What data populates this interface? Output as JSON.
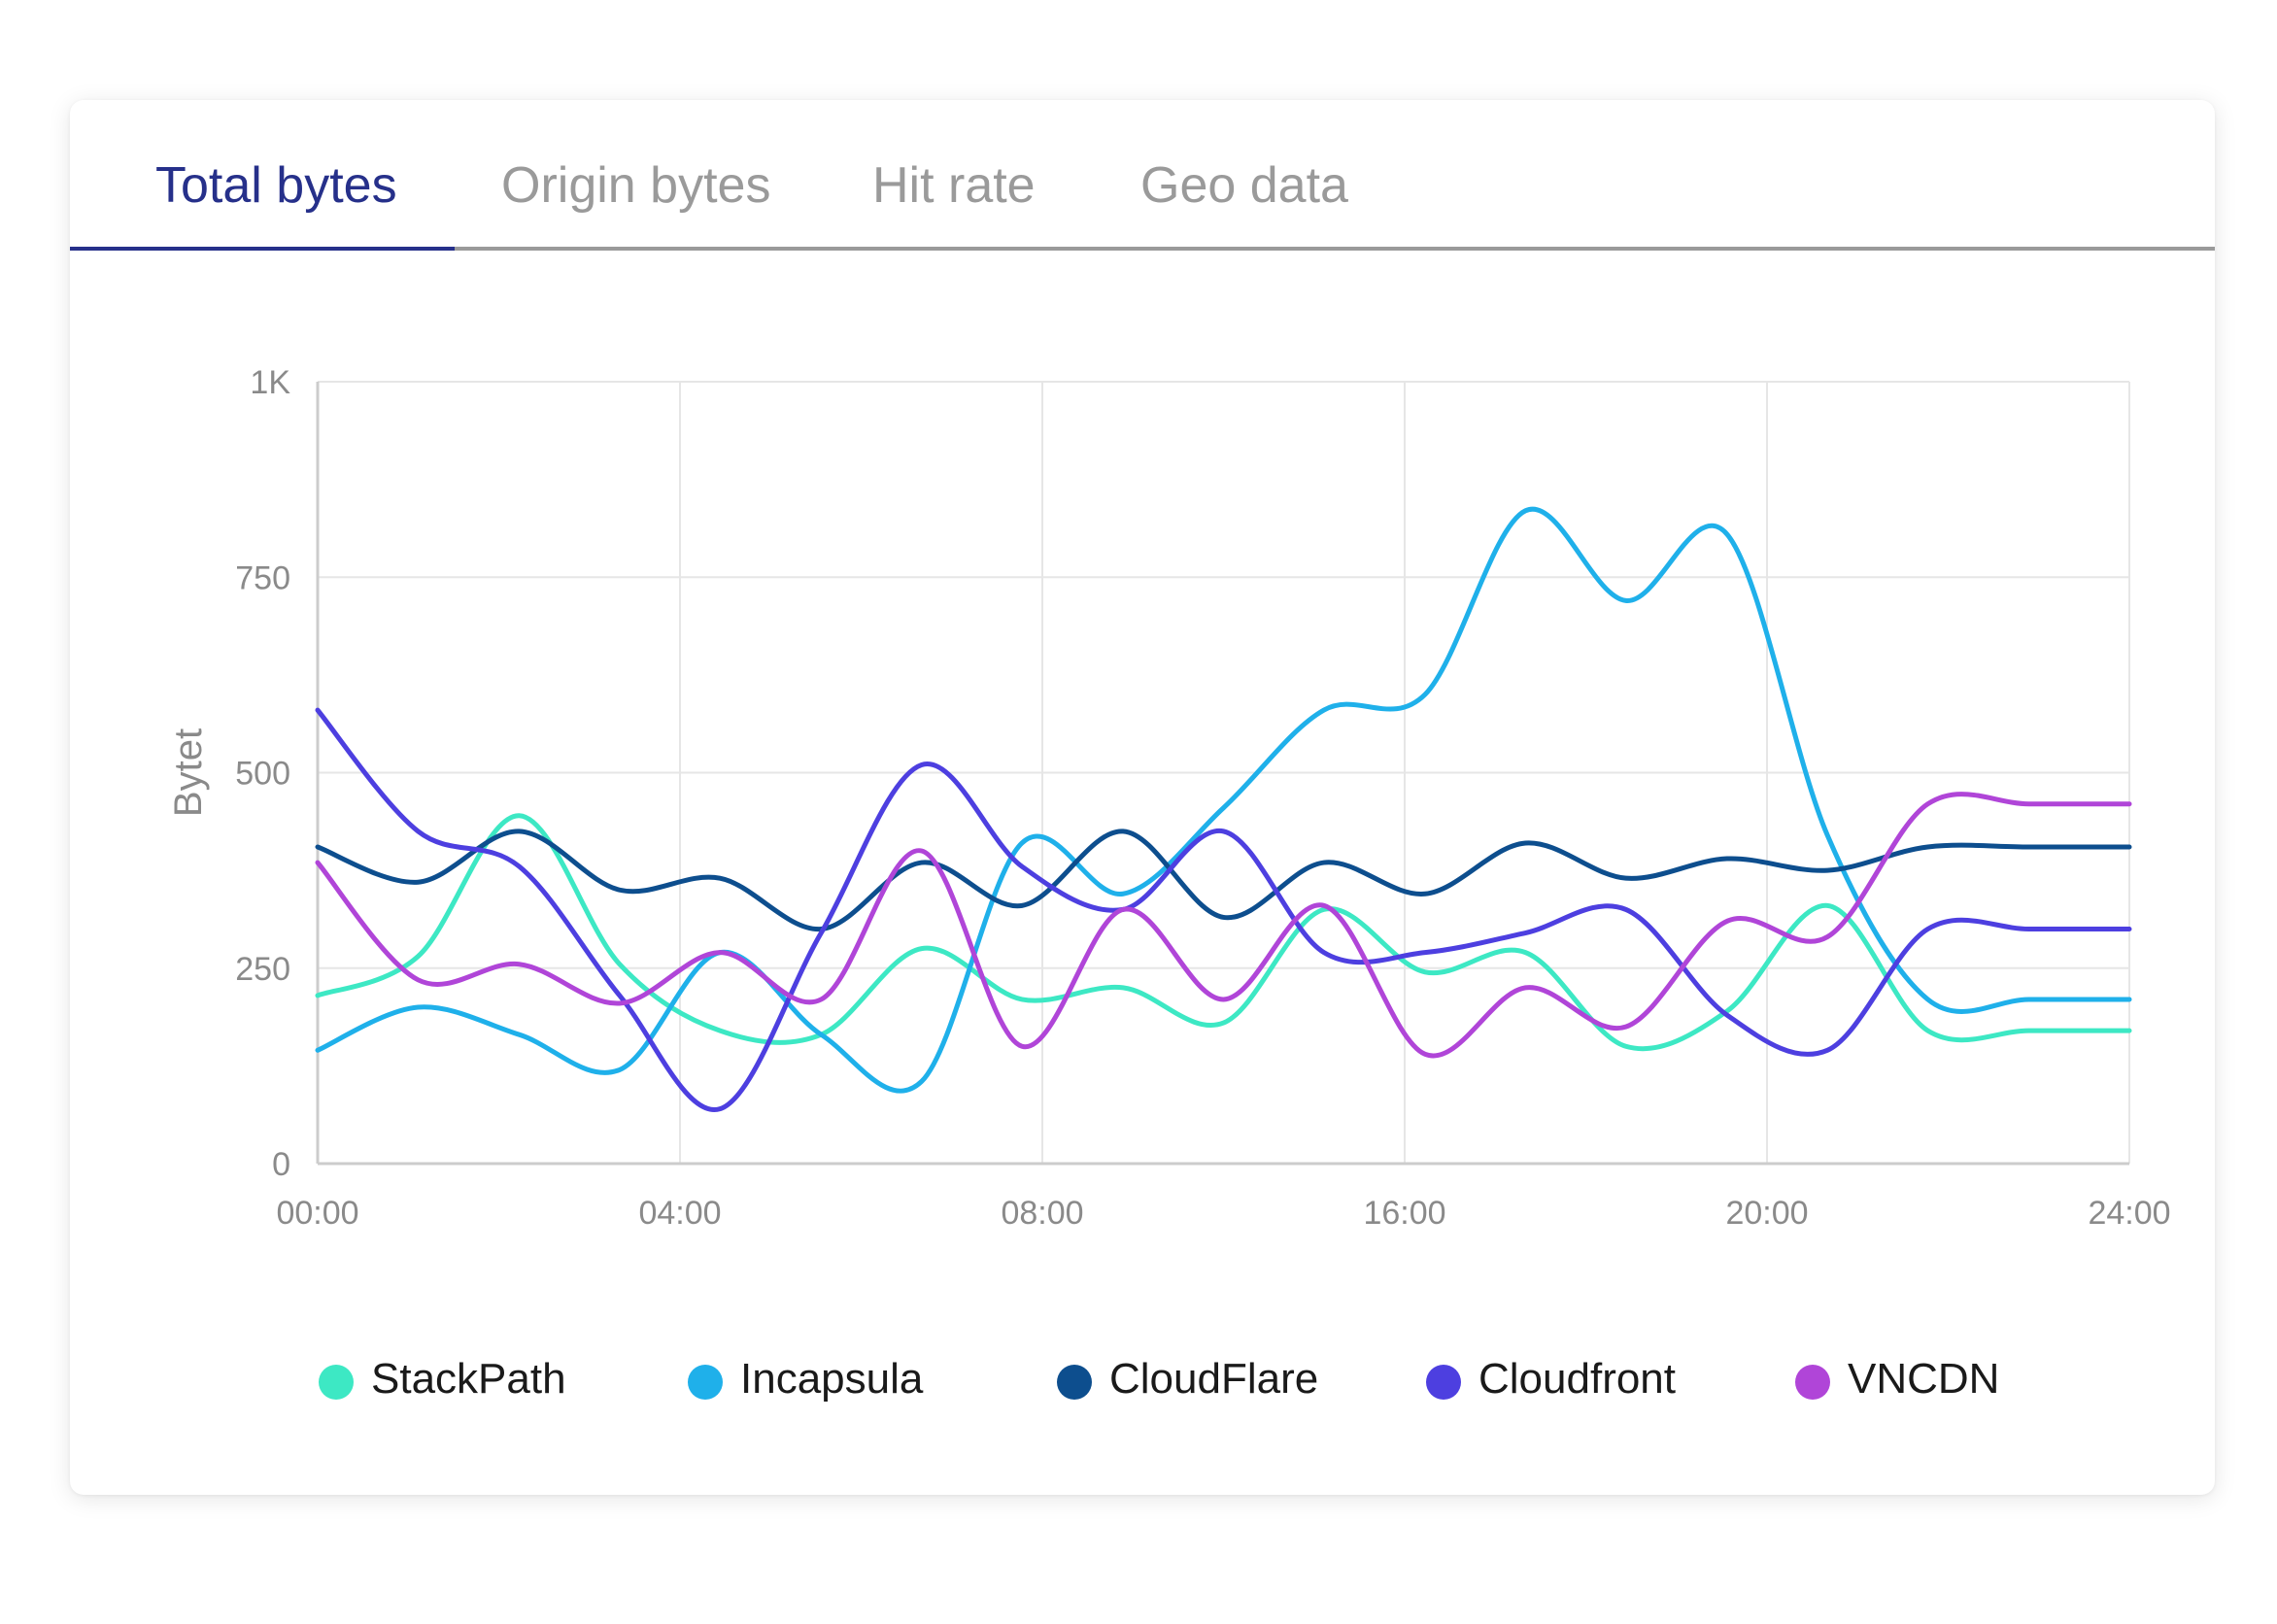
{
  "tabs": [
    {
      "label": "Total bytes",
      "active": true
    },
    {
      "label": "Origin bytes",
      "active": false
    },
    {
      "label": "Hit rate",
      "active": false
    },
    {
      "label": "Geo data",
      "active": false
    }
  ],
  "colors": {
    "accent": "#26308a",
    "grid": "#e6e6e6",
    "axis": "#cccccc",
    "tick_text": "#8a8a8a"
  },
  "chart_data": {
    "type": "line",
    "ylabel": "Bytet",
    "xlabel": "",
    "ylim": [
      0,
      1000
    ],
    "yticks": [
      {
        "value": 0,
        "label": "0"
      },
      {
        "value": 250,
        "label": "250"
      },
      {
        "value": 500,
        "label": "500"
      },
      {
        "value": 750,
        "label": "750"
      },
      {
        "value": 1000,
        "label": "1K"
      }
    ],
    "xticks": [
      "00:00",
      "04:00",
      "08:00",
      "16:00",
      "20:00",
      "24:00"
    ],
    "x": [
      0,
      1.33,
      2.67,
      4,
      5.33,
      6.67,
      8,
      9.33,
      10.67,
      12,
      13.33,
      14.67,
      16,
      17.33,
      18.67,
      20,
      21.33,
      22.67,
      24
    ],
    "grid": true,
    "legend_position": "bottom",
    "series": [
      {
        "name": "StackPath",
        "color": "#3de8c4",
        "values": [
          215,
          265,
          445,
          255,
          170,
          165,
          275,
          210,
          225,
          180,
          325,
          245,
          270,
          150,
          195,
          330,
          170,
          170,
          170
        ]
      },
      {
        "name": "Incapsula",
        "color": "#1fb0ea",
        "values": [
          145,
          200,
          165,
          120,
          270,
          165,
          105,
          410,
          345,
          455,
          580,
          600,
          835,
          720,
          805,
          420,
          210,
          210,
          210
        ]
      },
      {
        "name": "CloudFlare",
        "color": "#0d4e8e",
        "values": [
          405,
          360,
          425,
          350,
          365,
          300,
          385,
          330,
          425,
          315,
          385,
          345,
          410,
          365,
          390,
          375,
          405,
          405,
          405
        ]
      },
      {
        "name": "Cloudfront",
        "color": "#4d3fe0",
        "values": [
          580,
          425,
          380,
          215,
          70,
          295,
          510,
          380,
          325,
          425,
          270,
          270,
          295,
          325,
          190,
          145,
          300,
          300,
          300
        ]
      },
      {
        "name": "VNCDN",
        "color": "#b045d8",
        "values": [
          385,
          235,
          255,
          205,
          270,
          210,
          400,
          150,
          325,
          210,
          330,
          140,
          225,
          175,
          310,
          290,
          460,
          460,
          460
        ]
      }
    ]
  },
  "legend": [
    {
      "label": "StackPath",
      "color": "#3de8c4"
    },
    {
      "label": "Incapsula",
      "color": "#1fb0ea"
    },
    {
      "label": "CloudFlare",
      "color": "#0d4e8e"
    },
    {
      "label": "Cloudfront",
      "color": "#4d3fe0"
    },
    {
      "label": "VNCDN",
      "color": "#b045d8"
    }
  ]
}
